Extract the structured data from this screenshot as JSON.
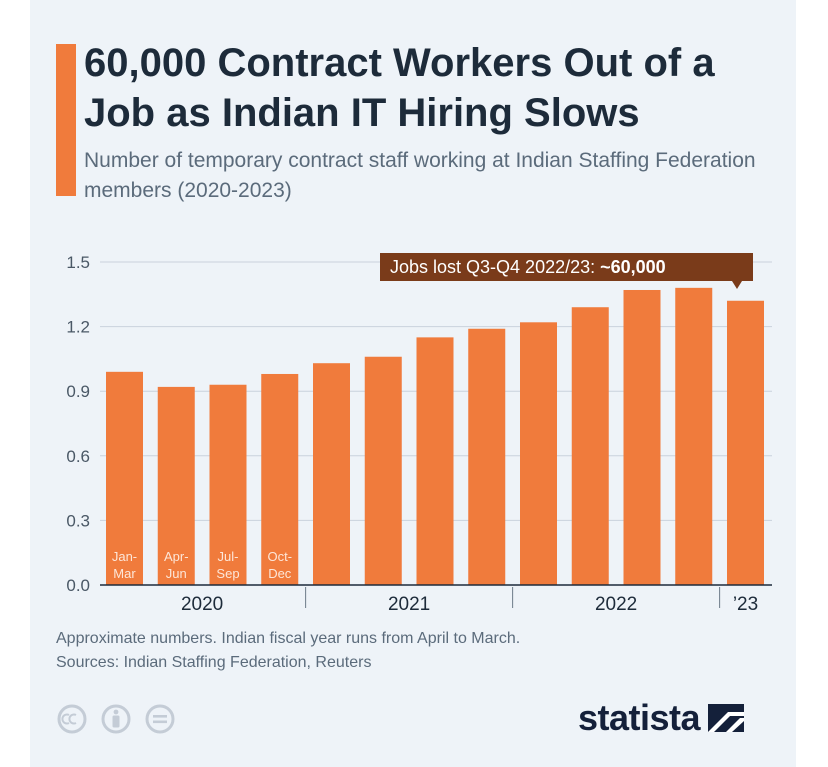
{
  "header": {
    "title": "60,000 Contract Workers Out of a Job as Indian IT Hiring Slows",
    "subtitle": "Number of temporary contract staff working at Indian Staffing Federation members (2020-2023)"
  },
  "chart_data": {
    "type": "bar",
    "categories": [
      "Jan-Mar 2020",
      "Apr-Jun 2020",
      "Jul-Sep 2020",
      "Oct-Dec 2020",
      "Jan-Mar 2021",
      "Apr-Jun 2021",
      "Jul-Sep 2021",
      "Oct-Dec 2021",
      "Jan-Mar 2022",
      "Apr-Jun 2022",
      "Jul-Sep 2022",
      "Oct-Dec 2022",
      "Jan-Mar 2023"
    ],
    "values": [
      0.99,
      0.92,
      0.93,
      0.98,
      1.03,
      1.06,
      1.15,
      1.19,
      1.22,
      1.29,
      1.37,
      1.38,
      1.32
    ],
    "inbar_labels": [
      [
        "Jan-",
        "Mar"
      ],
      [
        "Apr-",
        "Jun"
      ],
      [
        "Jul-",
        "Sep"
      ],
      [
        "Oct-",
        "Dec"
      ]
    ],
    "year_labels": [
      {
        "label": "2020",
        "first": 0,
        "last": 3
      },
      {
        "label": "2021",
        "first": 4,
        "last": 7
      },
      {
        "label": "2022",
        "first": 8,
        "last": 11
      },
      {
        "label": "’23",
        "first": 12,
        "last": 12
      }
    ],
    "yticks": [
      0.0,
      0.3,
      0.6,
      0.9,
      1.2,
      1.5
    ],
    "ylim": [
      0,
      1.5
    ],
    "annotation": {
      "text": "Jobs lost Q3-Q4 2022/23: ",
      "bold": "~60,000"
    },
    "bar_color": "#f07b3c",
    "annotation_color": "#7a3b1a",
    "grid": true
  },
  "footer": {
    "note": "Approximate numbers. Indian fiscal year runs from April to March.",
    "sources": "Sources: Indian Staffing Federation, Reuters",
    "brand": "statista"
  }
}
